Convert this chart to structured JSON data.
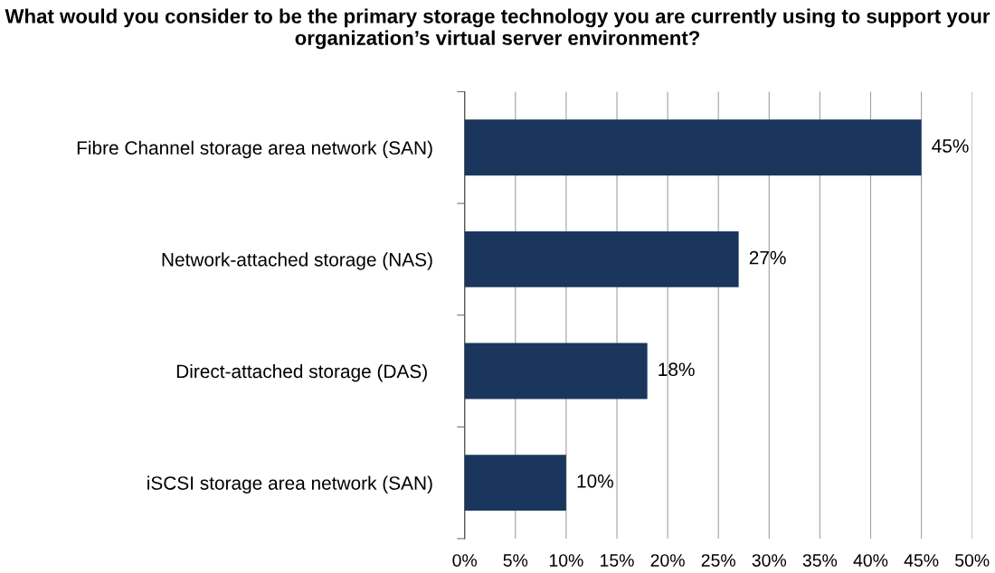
{
  "chart_data": {
    "type": "bar",
    "orientation": "horizontal",
    "title": "What would you consider to be the primary storage technology you are currently using to support your organization’s virtual server environment?",
    "categories": [
      "Fibre Channel storage area network (SAN)",
      "Network-attached storage (NAS)",
      "Direct-attached storage (DAS) ",
      "iSCSI storage area network (SAN)"
    ],
    "values": [
      45,
      27,
      18,
      10
    ],
    "value_labels": [
      "45%",
      "27%",
      "18%",
      "10%"
    ],
    "color": "#1b365d",
    "xlim": [
      0,
      50
    ],
    "xticks": [
      {
        "value": 0,
        "label": "0%"
      },
      {
        "value": 5,
        "label": "5%"
      },
      {
        "value": 10,
        "label": "10%"
      },
      {
        "value": 15,
        "label": "15%"
      },
      {
        "value": 20,
        "label": "20%"
      },
      {
        "value": 25,
        "label": "25%"
      },
      {
        "value": 30,
        "label": "30%"
      },
      {
        "value": 35,
        "label": "35%"
      },
      {
        "value": 40,
        "label": "40%"
      },
      {
        "value": 45,
        "label": "45%"
      },
      {
        "value": 50,
        "label": "50%"
      }
    ],
    "grid": "x"
  }
}
